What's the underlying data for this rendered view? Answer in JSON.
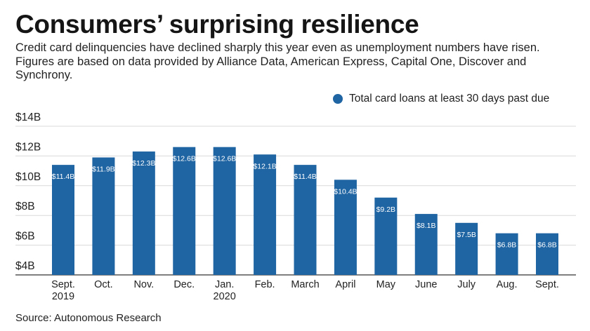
{
  "title": "Consumers’ surprising resilience",
  "subtitle": "Credit card delinquencies have declined sharply this year even as unemployment numbers have risen. Figures are based on data provided by Alliance Data, American Express, Capital One, Discover and Synchrony.",
  "source": "Source: Autonomous Research",
  "colors": {
    "bar": "#2065a3",
    "grid": "#d9d9d9",
    "axis": "#333333"
  },
  "chart_data": {
    "type": "bar",
    "legend": "Total card loans at least 30 days past due",
    "legend_position": "top-right",
    "categories": [
      [
        "Sept.",
        "2019"
      ],
      [
        "Oct."
      ],
      [
        "Nov."
      ],
      [
        "Dec."
      ],
      [
        "Jan.",
        "2020"
      ],
      [
        "Feb."
      ],
      [
        "March"
      ],
      [
        "April"
      ],
      [
        "May"
      ],
      [
        "June"
      ],
      [
        "July"
      ],
      [
        "Aug."
      ],
      [
        "Sept."
      ]
    ],
    "values": [
      11.4,
      11.9,
      12.3,
      12.6,
      12.6,
      12.1,
      11.4,
      10.4,
      9.2,
      8.1,
      7.5,
      6.8,
      6.8
    ],
    "data_labels": [
      "$11.4B",
      "$11.9B",
      "$12.3B",
      "$12.6B",
      "$12.6B",
      "$12.1B",
      "$11.4B",
      "$10.4B",
      "$9.2B",
      "$8.1B",
      "$7.5B",
      "$6.8B",
      "$6.8B"
    ],
    "yticks": [
      4,
      6,
      8,
      10,
      12,
      14
    ],
    "ytick_labels": [
      "$4B",
      "$6B",
      "$8B",
      "$10B",
      "$12B",
      "$14B"
    ],
    "ylim": [
      4,
      14
    ],
    "grid": true
  }
}
